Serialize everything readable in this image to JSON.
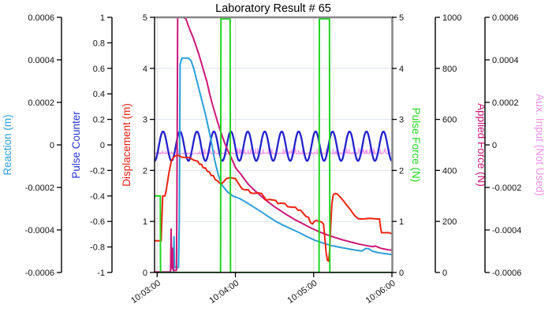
{
  "chart_data": {
    "type": "line",
    "title": "Laboratory Result # 65",
    "x_axis": {
      "label": "",
      "tick_labels": [
        "10:03:00",
        "10:04:00",
        "10:05:00",
        "10:06:00"
      ],
      "tick_seconds": [
        180,
        240,
        300,
        360
      ],
      "domain_seconds": [
        178,
        360
      ],
      "grid": true
    },
    "axes": [
      {
        "id": "reaction",
        "label": "Reaction (m)",
        "color": "#2B9FD8",
        "side": "left",
        "range": [
          -0.0006,
          0.0006
        ],
        "tick_values": [
          0.0006,
          0.0004,
          0.0002,
          0,
          -0.0002,
          -0.0004,
          -0.0006
        ],
        "tick_labels": [
          "0.0006",
          "0.0004",
          "0.0002",
          "0",
          "-0.0002",
          "-0.0004",
          "-0.0006"
        ]
      },
      {
        "id": "pulse_counter",
        "label": "Pulse Counter",
        "color": "#2535D6",
        "side": "left",
        "range": [
          -1,
          1
        ],
        "tick_values": [
          1,
          0.8,
          0.6,
          0.4,
          0.2,
          0,
          -0.2,
          -0.4,
          -0.6,
          -0.8,
          -1
        ],
        "tick_labels": [
          "1",
          "0.8",
          "0.6",
          "0.4",
          "0.2",
          "0",
          "-0.2",
          "-0.4",
          "-0.6",
          "-0.8",
          "-1"
        ]
      },
      {
        "id": "displacement",
        "label": "Displacement (m)",
        "color": "#EE2211",
        "side": "left",
        "range": [
          0,
          5
        ],
        "tick_values": [
          5,
          4,
          3,
          2,
          1,
          0
        ],
        "tick_labels": [
          "5",
          "4",
          "3",
          "2",
          "1",
          "0"
        ],
        "grid_values": [
          1,
          2,
          3,
          4
        ]
      },
      {
        "id": "pulse_force",
        "label": "Pulse Force (N)",
        "color": "#22D422",
        "side": "right",
        "range": [
          0,
          5
        ],
        "tick_values": [
          5,
          4,
          3,
          2,
          1,
          0
        ],
        "tick_labels": [
          "5",
          "4",
          "3",
          "2",
          "1",
          "0"
        ]
      },
      {
        "id": "applied_force",
        "label": "Applied Force (N)",
        "color": "#CC1778",
        "side": "right",
        "range": [
          0,
          1000
        ],
        "tick_values": [
          1000,
          800,
          600,
          400,
          200,
          0
        ],
        "tick_labels": [
          "1000",
          "800",
          "600",
          "400",
          "200",
          "0"
        ]
      },
      {
        "id": "aux_input",
        "label": "Aux. Input (Not Used)",
        "color": "#F590E8",
        "side": "right",
        "range": [
          -0.0006,
          0.0006
        ],
        "tick_values": [
          0.0006,
          0.0004,
          0.0002,
          0,
          -0.0002,
          -0.0004,
          -0.0006
        ],
        "tick_labels": [
          "0.0006",
          "0.0004",
          "0.0002",
          "0",
          "-0.0002",
          "-0.0004",
          "-0.0006"
        ]
      }
    ],
    "series": [
      {
        "id": "aux_input",
        "name": "Aux. Input",
        "axis": "aux_input",
        "color": "#F59BEA",
        "width": 1.2,
        "kind": "noise-band",
        "base": -4e-05,
        "spike_max": 2.8e-05,
        "spike_prob": 0.22,
        "jitter": 6e-06,
        "step_seconds": 0.35
      },
      {
        "id": "pulse_counter",
        "name": "Pulse Counter",
        "axis": "pulse_counter",
        "color": "#2222CC",
        "width": 2.3,
        "kind": "sine",
        "center": -0.01,
        "amplitude": 0.115,
        "period_seconds": 13,
        "phase": "trough-at-start",
        "step_seconds": 0.3
      },
      {
        "id": "reaction",
        "name": "Reaction",
        "axis": "reaction",
        "color": "#2B9FD8",
        "width": 2,
        "kind": "points",
        "points": [
          [
            178,
            -0.0006
          ],
          [
            192.6,
            -0.0006
          ],
          [
            192.9,
            -0.000432
          ],
          [
            193.3,
            -0.000576
          ],
          [
            196.4,
            -0.000576
          ],
          [
            197.0,
            -0.00035
          ],
          [
            197.6,
            0.00038
          ],
          [
            199,
            0.000408
          ],
          [
            204,
            0.000408
          ],
          [
            206,
            0.000396
          ],
          [
            208,
            0.00036
          ],
          [
            211,
            0.000288
          ],
          [
            214,
            0.000216
          ],
          [
            217,
            0.000144
          ],
          [
            220,
            6e-05
          ],
          [
            222,
            0
          ],
          [
            224,
            -7e-05
          ],
          [
            227,
            -0.000144
          ],
          [
            230,
            -0.000192
          ],
          [
            234,
            -0.000221
          ],
          [
            238,
            -0.00024
          ],
          [
            243,
            -0.000252
          ],
          [
            248,
            -0.000269
          ],
          [
            253,
            -0.000288
          ],
          [
            259,
            -0.000312
          ],
          [
            265,
            -0.000336
          ],
          [
            271,
            -0.00036
          ],
          [
            277,
            -0.000379
          ],
          [
            283,
            -0.000396
          ],
          [
            289,
            -0.000413
          ],
          [
            295,
            -0.000432
          ],
          [
            301,
            -0.000449
          ],
          [
            307,
            -0.000461
          ],
          [
            313,
            -0.000473
          ],
          [
            319,
            -0.00048
          ],
          [
            325,
            -0.000487
          ],
          [
            331,
            -0.000494
          ],
          [
            337,
            -0.000499
          ],
          [
            340,
            -0.000487
          ],
          [
            342.5,
            -0.000489
          ],
          [
            345,
            -0.0005
          ],
          [
            349,
            -0.000506
          ],
          [
            353,
            -0.00051
          ],
          [
            357,
            -0.000513
          ],
          [
            360,
            -0.000516
          ]
        ]
      },
      {
        "id": "applied_force",
        "name": "Applied Force",
        "axis": "applied_force",
        "color": "#CC1778",
        "width": 2,
        "kind": "points",
        "points": [
          [
            178,
            2
          ],
          [
            190.3,
            2
          ],
          [
            190.7,
            170
          ],
          [
            191.1,
            15
          ],
          [
            191.8,
            95
          ],
          [
            192.3,
            8
          ],
          [
            194.8,
            8
          ],
          [
            195.2,
            310
          ],
          [
            195.7,
            1000
          ],
          [
            199.5,
            1000
          ],
          [
            202,
            995
          ],
          [
            204,
            965
          ],
          [
            206,
            940
          ],
          [
            208,
            915
          ],
          [
            210,
            885
          ],
          [
            212,
            855
          ],
          [
            214,
            820
          ],
          [
            216,
            785
          ],
          [
            218,
            750
          ],
          [
            220,
            705
          ],
          [
            222,
            665
          ],
          [
            224,
            630
          ],
          [
            226,
            595
          ],
          [
            228,
            563
          ],
          [
            230,
            532
          ],
          [
            232,
            505
          ],
          [
            234,
            480
          ],
          [
            236,
            458
          ],
          [
            238,
            436
          ],
          [
            240,
            412
          ],
          [
            242,
            398
          ],
          [
            244,
            386
          ],
          [
            246,
            372
          ],
          [
            248,
            358
          ],
          [
            250,
            345
          ],
          [
            253,
            330
          ],
          [
            256,
            316
          ],
          [
            259,
            302
          ],
          [
            262,
            289
          ],
          [
            265,
            277
          ],
          [
            268,
            265
          ],
          [
            271,
            254
          ],
          [
            274,
            244
          ],
          [
            277,
            234
          ],
          [
            280,
            224
          ],
          [
            283,
            215
          ],
          [
            286,
            206
          ],
          [
            289,
            198
          ],
          [
            292,
            190
          ],
          [
            295,
            182
          ],
          [
            298,
            174
          ],
          [
            301,
            167
          ],
          [
            304,
            160
          ],
          [
            307,
            154
          ],
          [
            310,
            148
          ],
          [
            313,
            143
          ],
          [
            316,
            138
          ],
          [
            319,
            133
          ],
          [
            322,
            128
          ],
          [
            325,
            124
          ],
          [
            328,
            120
          ],
          [
            331,
            116
          ],
          [
            334,
            112
          ],
          [
            337,
            109
          ],
          [
            340,
            106
          ],
          [
            343,
            103
          ],
          [
            345.5,
            101
          ],
          [
            347,
            104
          ],
          [
            349,
            100
          ],
          [
            351,
            96
          ],
          [
            353,
            93
          ],
          [
            355,
            91
          ],
          [
            357,
            89
          ],
          [
            359,
            88
          ],
          [
            360,
            87
          ]
        ]
      },
      {
        "id": "displacement",
        "name": "Displacement",
        "axis": "displacement",
        "color": "#EE2211",
        "width": 2,
        "kind": "points",
        "points": [
          [
            178,
            0.62
          ],
          [
            183,
            0.62
          ],
          [
            183.6,
            1.05
          ],
          [
            184.2,
            1.5
          ],
          [
            186,
            1.5
          ],
          [
            187,
            1.62
          ],
          [
            189,
            1.95
          ],
          [
            191,
            2.2
          ],
          [
            193.5,
            2.28
          ],
          [
            196,
            2.3
          ],
          [
            199,
            2.26
          ],
          [
            205,
            2.25
          ],
          [
            208,
            2.2
          ],
          [
            211,
            2.18
          ],
          [
            212.5,
            2.12
          ],
          [
            214,
            2.12
          ],
          [
            215.5,
            2.05
          ],
          [
            217,
            2.05
          ],
          [
            218.5,
            1.98
          ],
          [
            220,
            1.97
          ],
          [
            221.5,
            1.9
          ],
          [
            223,
            1.9
          ],
          [
            224.5,
            1.82
          ],
          [
            226,
            1.8
          ],
          [
            228,
            1.75
          ],
          [
            229.5,
            1.74
          ],
          [
            231,
            1.78
          ],
          [
            233,
            1.84
          ],
          [
            236,
            1.86
          ],
          [
            240,
            1.84
          ],
          [
            242,
            1.76
          ],
          [
            243.5,
            1.7
          ],
          [
            245,
            1.64
          ],
          [
            247,
            1.62
          ],
          [
            250,
            1.62
          ],
          [
            251.5,
            1.56
          ],
          [
            254,
            1.55
          ],
          [
            257,
            1.56
          ],
          [
            260,
            1.55
          ],
          [
            262,
            1.48
          ],
          [
            263.5,
            1.42
          ],
          [
            266,
            1.43
          ],
          [
            269,
            1.42
          ],
          [
            271,
            1.41
          ],
          [
            272.5,
            1.35
          ],
          [
            275,
            1.36
          ],
          [
            278,
            1.35
          ],
          [
            280,
            1.29
          ],
          [
            283,
            1.28
          ],
          [
            286,
            1.28
          ],
          [
            288,
            1.22
          ],
          [
            290,
            1.22
          ],
          [
            292,
            1.16
          ],
          [
            294,
            1.1
          ],
          [
            296,
            1.08
          ],
          [
            297.5,
            0.98
          ],
          [
            299,
            0.95
          ],
          [
            300.5,
            1.0
          ],
          [
            302,
            1.02
          ],
          [
            304,
            1.0
          ],
          [
            306,
            0.99
          ],
          [
            307.5,
            0.95
          ],
          [
            308.5,
            0.7
          ],
          [
            309.5,
            0.4
          ],
          [
            310.5,
            0.24
          ],
          [
            311.5,
            0.22
          ],
          [
            312.3,
            0.45
          ],
          [
            313,
            0.9
          ],
          [
            314,
            1.35
          ],
          [
            315,
            1.52
          ],
          [
            316.5,
            1.55
          ],
          [
            318,
            1.54
          ],
          [
            319.5,
            1.5
          ],
          [
            321,
            1.46
          ],
          [
            323,
            1.4
          ],
          [
            325,
            1.33
          ],
          [
            327,
            1.27
          ],
          [
            329,
            1.2
          ],
          [
            331,
            1.13
          ],
          [
            333,
            1.08
          ],
          [
            334.5,
            1.05
          ],
          [
            338,
            1.05
          ],
          [
            343,
            1.06
          ],
          [
            348,
            1.05
          ],
          [
            350.5,
            1.05
          ],
          [
            351.2,
            0.9
          ],
          [
            352,
            0.78
          ],
          [
            355,
            0.78
          ],
          [
            358,
            0.78
          ],
          [
            360,
            0.76
          ]
        ]
      },
      {
        "id": "pulse_force",
        "name": "Pulse Force",
        "axis": "pulse_force",
        "color": "#22D422",
        "width": 2,
        "kind": "points",
        "points": [
          [
            178,
            1.5
          ],
          [
            182.4,
            1.5
          ],
          [
            182.6,
            0
          ],
          [
            228.6,
            0
          ],
          [
            228.9,
            4.97
          ],
          [
            235.9,
            4.97
          ],
          [
            236.2,
            0
          ],
          [
            304.1,
            0
          ],
          [
            304.4,
            4.97
          ],
          [
            312.1,
            4.97
          ],
          [
            312.4,
            0
          ],
          [
            360,
            0
          ]
        ]
      }
    ]
  }
}
